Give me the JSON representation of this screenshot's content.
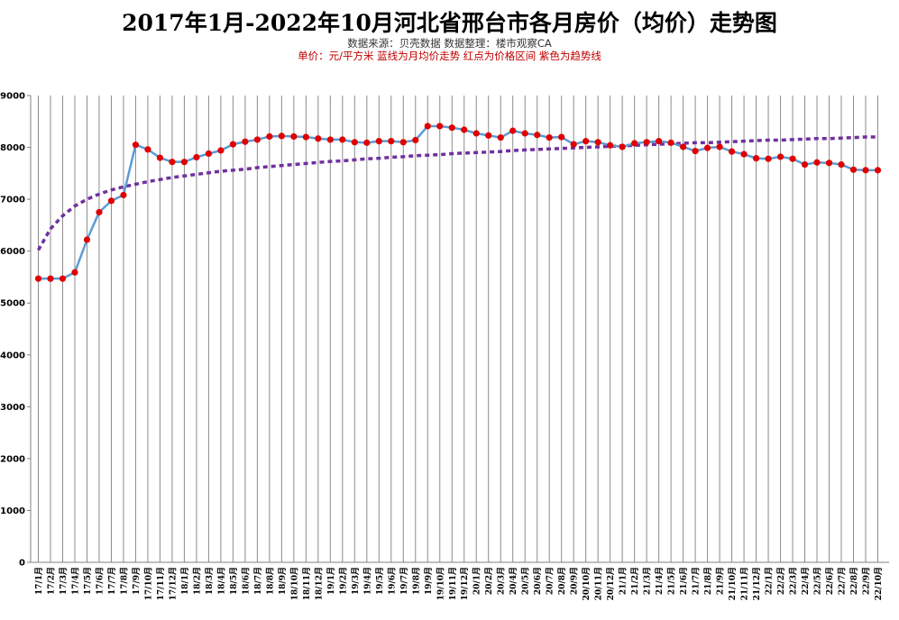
{
  "chart_data": {
    "type": "line",
    "title": "2017年1月-2022年10月河北省邢台市各月房价（均价）走势图",
    "subtitle": "数据来源：贝壳数据     数据整理：楼市观察CA",
    "note": "单价：元/平方米    蓝线为月均价走势   红点为价格区间     紫色为趋势线",
    "ylim": [
      0,
      9000
    ],
    "yticks": [
      0,
      1000,
      2000,
      3000,
      4000,
      5000,
      6000,
      7000,
      8000,
      9000
    ],
    "grid": true,
    "categories": [
      "17/1月",
      "17/2月",
      "17/3月",
      "17/4月",
      "17/5月",
      "17/6月",
      "17/7月",
      "17/8月",
      "17/9月",
      "17/10月",
      "17/11月",
      "17/12月",
      "18/1月",
      "18/2月",
      "18/3月",
      "18/4月",
      "18/5月",
      "18/6月",
      "18/7月",
      "18/8月",
      "18/9月",
      "18/10月",
      "18/11月",
      "18/12月",
      "19/1月",
      "19/2月",
      "19/3月",
      "19/4月",
      "19/5月",
      "19/6月",
      "19/7月",
      "19/8月",
      "19/9月",
      "19/10月",
      "19/11月",
      "19/12月",
      "20/1月",
      "20/2月",
      "20/3月",
      "20/4月",
      "20/5月",
      "20/6月",
      "20/7月",
      "20/8月",
      "20/9月",
      "20/10月",
      "20/11月",
      "20/12月",
      "21/1月",
      "21/2月",
      "21/3月",
      "21/4月",
      "21/5月",
      "21/6月",
      "21/7月",
      "21/8月",
      "21/9月",
      "21/10月",
      "21/11月",
      "21/12月",
      "22/1月",
      "22/2月",
      "22/3月",
      "22/4月",
      "22/5月",
      "22/6月",
      "22/7月",
      "22/8月",
      "22/9月",
      "22/10月"
    ],
    "series": [
      {
        "values": [
          5470,
          5470,
          5470,
          5590,
          6220,
          6750,
          6970,
          7080,
          8050,
          7960,
          7800,
          7720,
          7720,
          7810,
          7880,
          7940,
          8060,
          8110,
          8150,
          8210,
          8220,
          8210,
          8200,
          8170,
          8150,
          8150,
          8100,
          8090,
          8120,
          8120,
          8100,
          8140,
          8410,
          8410,
          8380,
          8340,
          8270,
          8230,
          8190,
          8320,
          8270,
          8240,
          8190,
          8200,
          8060,
          8120,
          8100,
          8040,
          8010,
          8080,
          8100,
          8120,
          8090,
          8010,
          7930,
          7990,
          8010,
          7920,
          7870,
          7790,
          7780,
          7820,
          7780,
          7670,
          7710,
          7700,
          7670,
          7570,
          7560,
          7560
        ],
        "line_color": "#5b9bd5",
        "marker_color": "#e00000"
      },
      {
        "values": [
          6020,
          6430,
          6680,
          6870,
          7000,
          7100,
          7180,
          7240,
          7290,
          7340,
          7380,
          7420,
          7450,
          7480,
          7510,
          7540,
          7560,
          7580,
          7610,
          7630,
          7650,
          7670,
          7690,
          7710,
          7730,
          7740,
          7760,
          7780,
          7790,
          7810,
          7820,
          7840,
          7850,
          7860,
          7880,
          7890,
          7900,
          7910,
          7920,
          7940,
          7950,
          7960,
          7970,
          7980,
          7990,
          8000,
          8010,
          8020,
          8030,
          8040,
          8050,
          8060,
          8070,
          8080,
          8090,
          8090,
          8100,
          8110,
          8120,
          8130,
          8140,
          8140,
          8150,
          8160,
          8170,
          8170,
          8180,
          8190,
          8200,
          8200
        ],
        "line_color": "#7030a0",
        "line_style": "dotted"
      }
    ]
  }
}
